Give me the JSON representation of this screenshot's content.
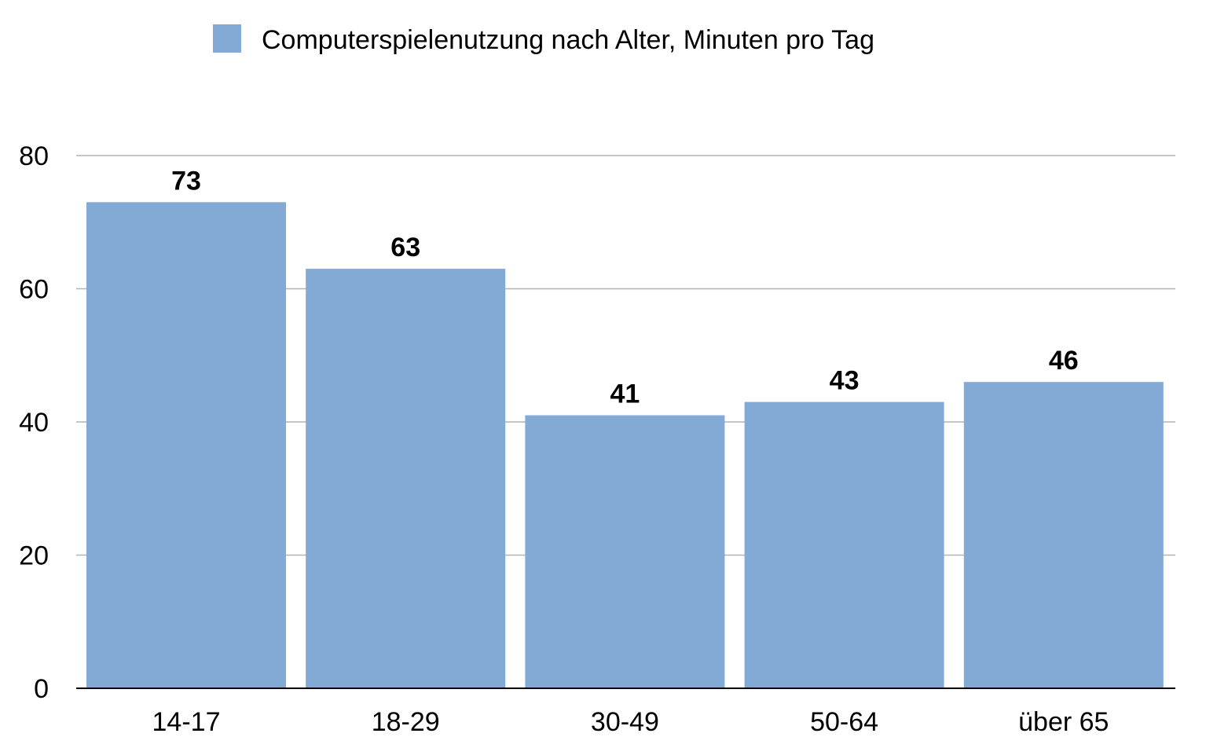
{
  "chart_data": {
    "type": "bar",
    "categories": [
      "14-17",
      "18-29",
      "30-49",
      "50-64",
      "über 65"
    ],
    "series": [
      {
        "name": "Computerspielenutzung nach Alter, Minuten pro Tag",
        "values": [
          73,
          63,
          41,
          43,
          46
        ],
        "color": "#83aad5"
      }
    ],
    "ylim": [
      0,
      80
    ],
    "yticks": [
      0,
      20,
      40,
      60,
      80
    ],
    "grid": true,
    "legend_position": "top-center",
    "data_labels": true
  }
}
